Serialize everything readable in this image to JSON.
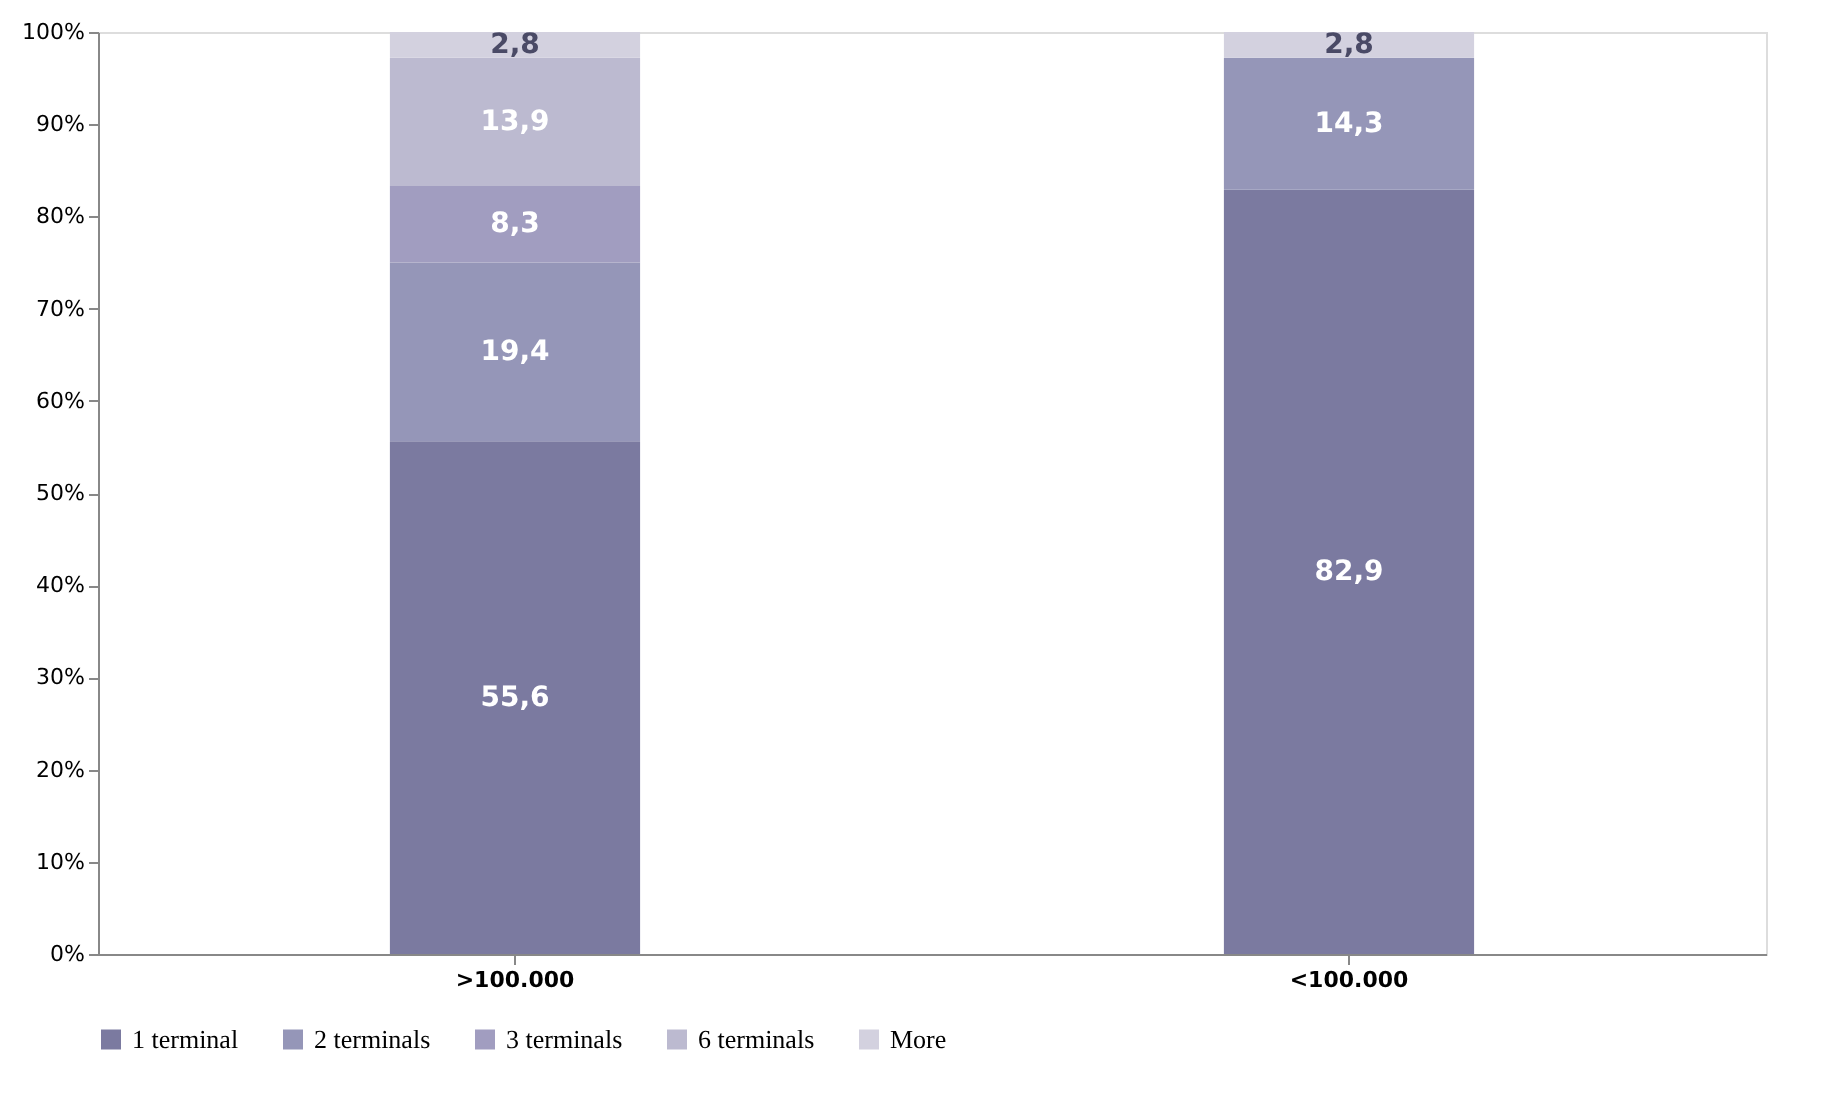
{
  "chart_data": {
    "type": "bar",
    "stacked": true,
    "categories": [
      ">100.000",
      "<100.000"
    ],
    "series": [
      {
        "name": "1 terminal",
        "color": "#7b7aa0",
        "values": [
          55.6,
          82.9
        ],
        "value_labels": [
          "55,6",
          "82,9"
        ]
      },
      {
        "name": "2 terminals",
        "color": "#9596b8",
        "values": [
          19.4,
          14.3
        ],
        "value_labels": [
          "19,4",
          "14,3"
        ]
      },
      {
        "name": "3 terminals",
        "color": "#a19dc0",
        "values": [
          8.3,
          null
        ],
        "value_labels": [
          "8,3",
          null
        ]
      },
      {
        "name": "6 terminals",
        "color": "#bcbad0",
        "values": [
          13.9,
          null
        ],
        "value_labels": [
          "13,9",
          null
        ]
      },
      {
        "name": "More",
        "color": "#d3d1df",
        "values": [
          2.8,
          2.8
        ],
        "value_labels": [
          "2,8",
          "2,8"
        ]
      }
    ],
    "ylim": [
      0,
      100
    ],
    "yticks": [
      {
        "value": 0,
        "label": "0%"
      },
      {
        "value": 10,
        "label": "10%"
      },
      {
        "value": 20,
        "label": "20%"
      },
      {
        "value": 30,
        "label": "30%"
      },
      {
        "value": 40,
        "label": "40%"
      },
      {
        "value": 50,
        "label": "50%"
      },
      {
        "value": 60,
        "label": "60%"
      },
      {
        "value": 70,
        "label": "70%"
      },
      {
        "value": 80,
        "label": "80%"
      },
      {
        "value": 90,
        "label": "90%"
      },
      {
        "value": 100,
        "label": "100%"
      }
    ],
    "grid": false,
    "legend": "bottom"
  }
}
